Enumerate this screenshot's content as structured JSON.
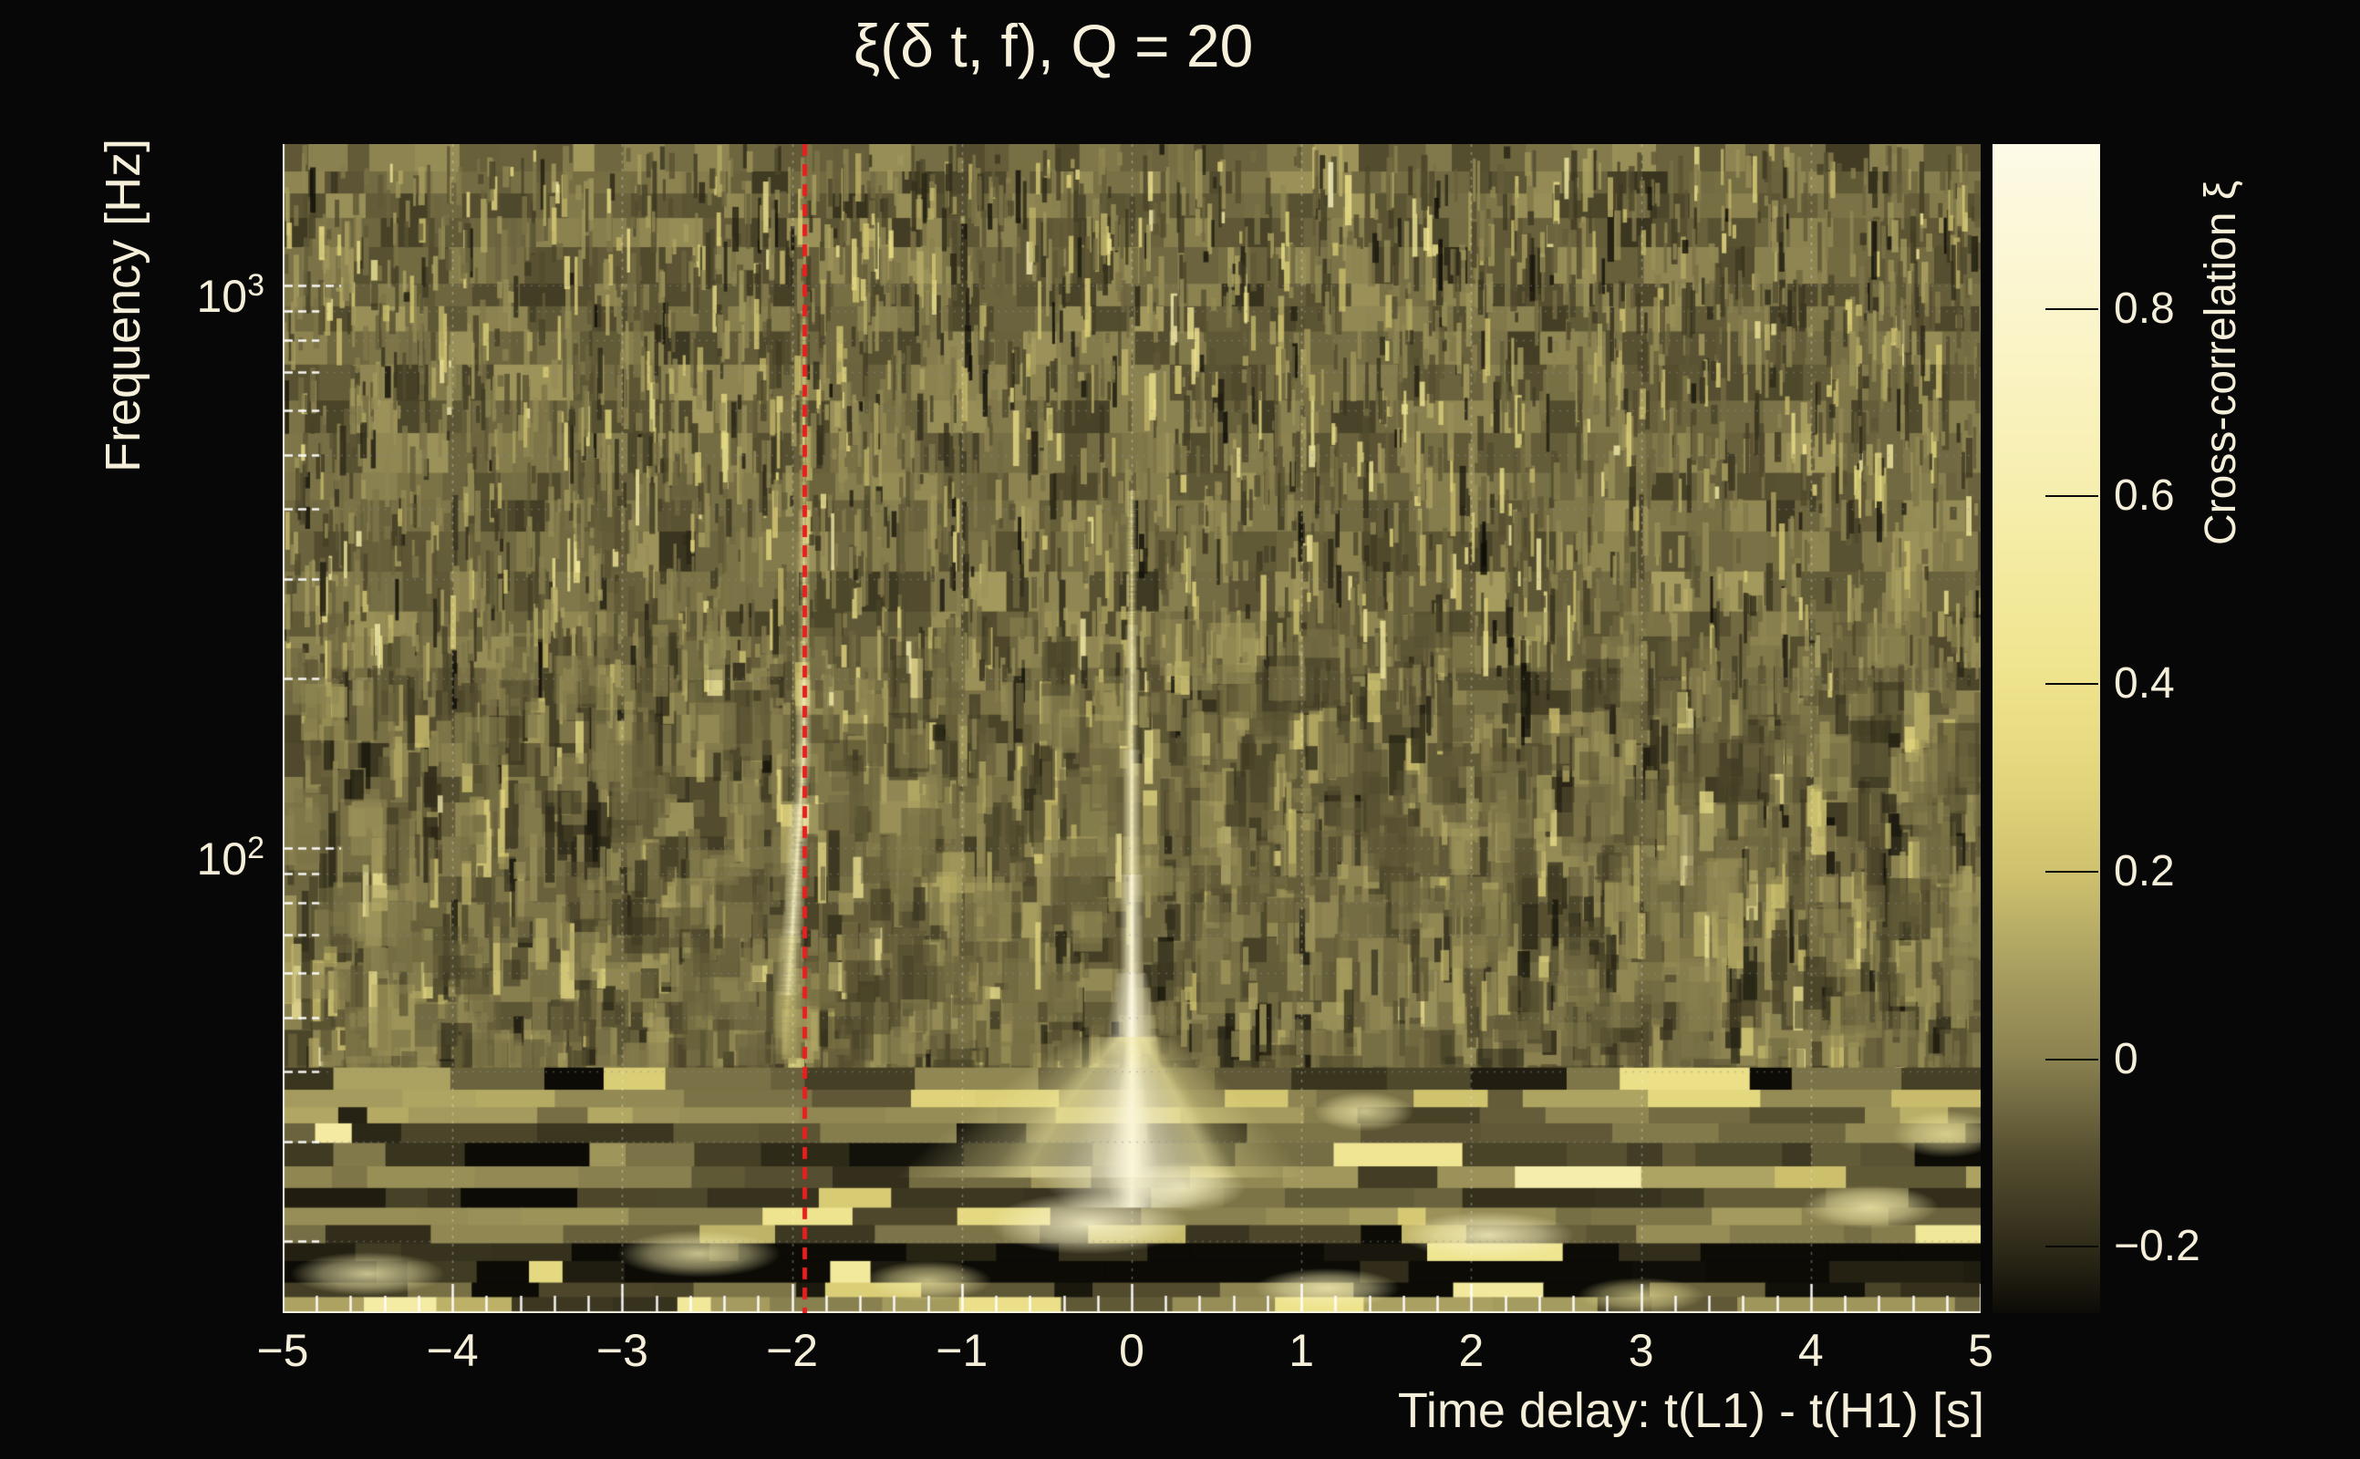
{
  "title": "ξ(δ t, f), Q = 20",
  "x_axis": {
    "title": "Time delay: t(L1) - t(H1) [s]",
    "range": [
      -5,
      5
    ],
    "minor_step": 0.2,
    "ticks": [
      {
        "value": -5,
        "label": "−5"
      },
      {
        "value": -4,
        "label": "−4"
      },
      {
        "value": -3,
        "label": "−3"
      },
      {
        "value": -2,
        "label": "−2"
      },
      {
        "value": -1,
        "label": "−1"
      },
      {
        "value": 0,
        "label": "0"
      },
      {
        "value": 1,
        "label": "1"
      },
      {
        "value": 2,
        "label": "2"
      },
      {
        "value": 3,
        "label": "3"
      },
      {
        "value": 4,
        "label": "4"
      },
      {
        "value": 5,
        "label": "5"
      }
    ]
  },
  "y_axis": {
    "title": "Frequency [Hz]",
    "scale": "log",
    "range_hz": [
      14.9,
      1782
    ],
    "ticks": [
      {
        "value": 1000,
        "base": "10",
        "exp": "3"
      },
      {
        "value": 100,
        "base": "10",
        "exp": "2"
      }
    ]
  },
  "colorbar": {
    "title": "Cross-correlation ξ",
    "range": [
      -0.2706,
      0.9756
    ],
    "ticks": [
      {
        "value": 0.8,
        "label": "0.8"
      },
      {
        "value": 0.6,
        "label": "0.6"
      },
      {
        "value": 0.4,
        "label": "0.4"
      },
      {
        "value": 0.2,
        "label": "0.2"
      },
      {
        "value": 0,
        "label": "0"
      },
      {
        "value": -0.2,
        "label": "−0.2"
      }
    ]
  },
  "chart_data": {
    "type": "heatmap",
    "title": "ξ(δ t, f), Q = 20",
    "xlabel": "Time delay: t(L1) - t(H1) [s]",
    "ylabel": "Frequency [Hz]",
    "zlabel": "Cross-correlation ξ",
    "xlim": [
      -5,
      5
    ],
    "ylim_hz": [
      14.9,
      1782
    ],
    "yscale": "log",
    "zlim": [
      -0.2706,
      0.9756
    ],
    "x_major_ticks": [
      -5,
      -4,
      -3,
      -2,
      -1,
      0,
      1,
      2,
      3,
      4,
      5
    ],
    "x_minor_step": 0.2,
    "y_major_ticks_hz": [
      1000,
      100
    ],
    "y_minor_ticks_hz": [
      900,
      800,
      700,
      600,
      500,
      400,
      300,
      200,
      90,
      80,
      70,
      60,
      50,
      40,
      30,
      20
    ],
    "grid": true,
    "background_value": -0.05,
    "seed": 170817,
    "palette": [
      {
        "v": -0.2706,
        "color": "#0c0b06"
      },
      {
        "v": -0.2,
        "color": "#2f2b19"
      },
      {
        "v": -0.1,
        "color": "#575031"
      },
      {
        "v": 0.0,
        "color": "#8a8150"
      },
      {
        "v": 0.1,
        "color": "#aaa061"
      },
      {
        "v": 0.2,
        "color": "#cfc26e"
      },
      {
        "v": 0.3,
        "color": "#e2d67d"
      },
      {
        "v": 0.4,
        "color": "#eee38c"
      },
      {
        "v": 0.5,
        "color": "#f3e99c"
      },
      {
        "v": 0.6,
        "color": "#f6eead"
      },
      {
        "v": 0.7,
        "color": "#f9f2bd"
      },
      {
        "v": 0.8,
        "color": "#fbf5cd"
      },
      {
        "v": 0.9,
        "color": "#fcf8da"
      },
      {
        "v": 0.9756,
        "color": "#fdfae8"
      }
    ],
    "features": [
      {
        "name": "zero-lag-signal",
        "type": "chirp-track",
        "time_delay_s": 0.0,
        "freq_range_hz": [
          23,
          430
        ],
        "peak_freq_hz": 32,
        "peak_value": 0.95
      },
      {
        "name": "offset-signal",
        "type": "chirp-track",
        "time_delay_s": -1.93,
        "freq_range_hz": [
          43,
          900
        ],
        "peak_freq_hz": 110,
        "peak_value": 0.75
      },
      {
        "name": "low-freq-banding",
        "type": "horizontal-bands",
        "freq_max_hz": 38
      },
      {
        "name": "marker-line",
        "type": "vertical-dashed-line",
        "time_delay_s": -1.93,
        "color": "#e81f1f",
        "style": "dashed"
      }
    ],
    "hotspots": [
      {
        "t": -0.25,
        "f": 21.5,
        "rx": 110,
        "ry": 34,
        "v": 0.78,
        "a": 0.9
      },
      {
        "t": 0.3,
        "f": 25,
        "rx": 70,
        "ry": 28,
        "v": 0.7,
        "a": 0.8
      },
      {
        "t": -2.55,
        "f": 19,
        "rx": 90,
        "ry": 26,
        "v": 0.6,
        "a": 0.8
      },
      {
        "t": 2.1,
        "f": 20.5,
        "rx": 95,
        "ry": 26,
        "v": 0.72,
        "a": 0.85
      },
      {
        "t": 4.35,
        "f": 23,
        "rx": 75,
        "ry": 24,
        "v": 0.6,
        "a": 0.8
      },
      {
        "t": -4.5,
        "f": 17.5,
        "rx": 85,
        "ry": 24,
        "v": 0.62,
        "a": 0.8
      },
      {
        "t": 1.15,
        "f": 16.5,
        "rx": 80,
        "ry": 22,
        "v": 0.65,
        "a": 0.8
      },
      {
        "t": -1.2,
        "f": 17,
        "rx": 70,
        "ry": 22,
        "v": 0.55,
        "a": 0.75
      },
      {
        "t": 3.0,
        "f": 16,
        "rx": 70,
        "ry": 20,
        "v": 0.5,
        "a": 0.7
      },
      {
        "t": 4.8,
        "f": 31,
        "rx": 60,
        "ry": 26,
        "v": 0.55,
        "a": 0.7
      },
      {
        "t": 1.37,
        "f": 34,
        "rx": 55,
        "ry": 22,
        "v": 0.6,
        "a": 0.75
      }
    ]
  }
}
